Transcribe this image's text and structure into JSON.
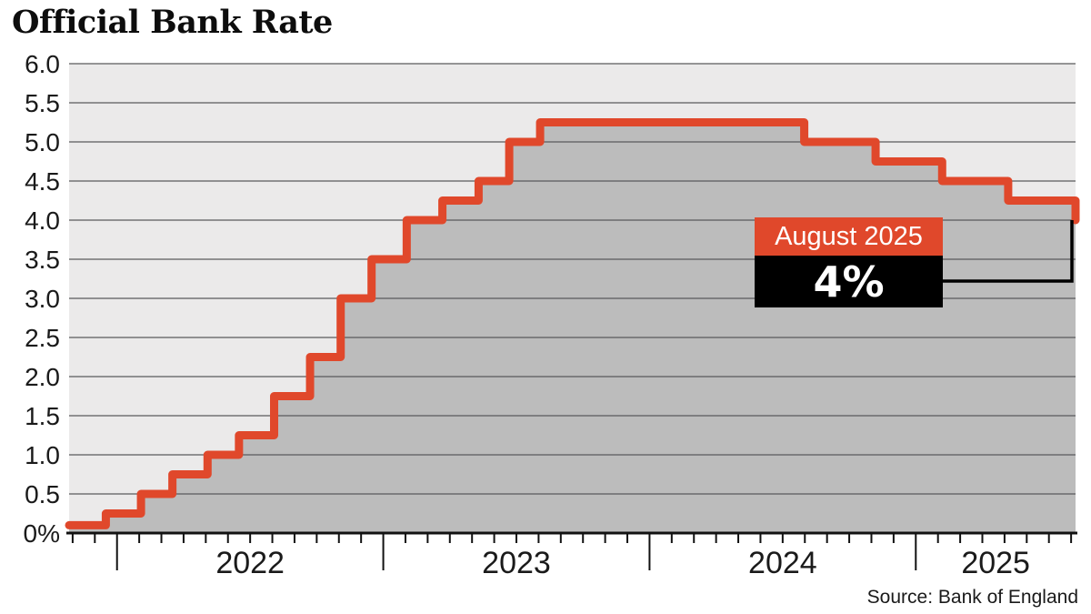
{
  "chart_data": {
    "type": "area",
    "step": true,
    "title": "Official Bank Rate",
    "source": "Source: Bank of England",
    "x": [
      2021.82,
      2021.958,
      2022.09,
      2022.208,
      2022.34,
      2022.458,
      2022.59,
      2022.725,
      2022.84,
      2022.956,
      2023.088,
      2023.222,
      2023.358,
      2023.473,
      2023.589,
      2024.581,
      2024.849,
      2025.099,
      2025.347,
      2025.6
    ],
    "y": [
      0.1,
      0.25,
      0.5,
      0.75,
      1.0,
      1.25,
      1.75,
      2.25,
      3.0,
      3.5,
      4.0,
      4.25,
      4.5,
      5.0,
      5.25,
      5.0,
      4.75,
      4.5,
      4.25,
      4.0
    ],
    "xlim": [
      2021.82,
      2025.6
    ],
    "ylim": [
      0,
      6
    ],
    "x_tick_years": [
      "2022",
      "2023",
      "2024",
      "2025"
    ],
    "y_tick_labels": [
      "6.0",
      "5.5",
      "5.0",
      "4.5",
      "4.0",
      "3.5",
      "3.0",
      "2.5",
      "2.0",
      "1.5",
      "1.0",
      "0.5",
      "0%"
    ],
    "grid": "horizontal every 0.5, minor monthly ticks on x axis",
    "legend": "none",
    "annotation": {
      "label": "August 2025",
      "value": "4%"
    },
    "colors": {
      "line": "#e0482b",
      "area_fill": "#bcbcbc",
      "plot_bg": "#ebeaea",
      "gridline": "#5a5a5c",
      "axis": "#111111",
      "tick_text": "#1a1a1a",
      "callout_label_bg": "#e0482b",
      "callout_value_bg": "#000000",
      "callout_text": "#ffffff"
    }
  }
}
